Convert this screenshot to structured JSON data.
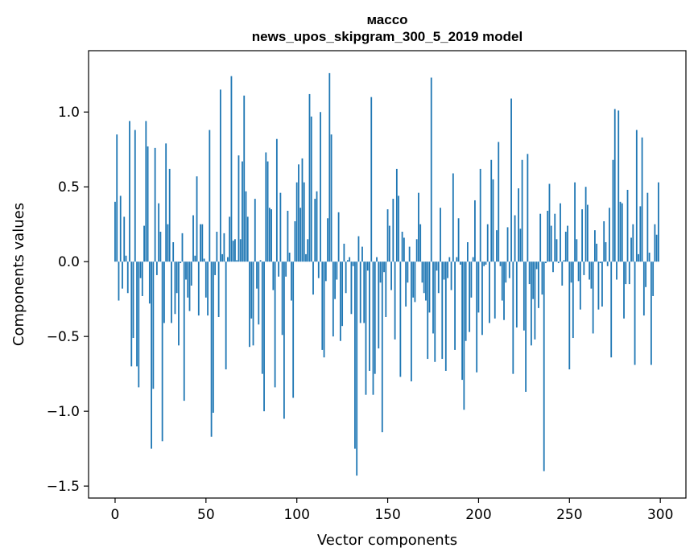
{
  "chart_data": {
    "type": "bar",
    "title": "массо",
    "subtitle": "news_upos_skipgram_300_5_2019 model",
    "xlabel": "Vector components",
    "ylabel": "Components values",
    "xlim": [
      -14.6,
      314.1
    ],
    "ylim": [
      -1.58,
      1.41
    ],
    "grid": false,
    "bar_color": "#1f77b4",
    "xticks": [
      0,
      50,
      100,
      150,
      200,
      250,
      300
    ],
    "xtick_labels": [
      "0",
      "50",
      "100",
      "150",
      "200",
      "250",
      "300"
    ],
    "yticks": [
      -1.5,
      -1.0,
      -0.5,
      0.0,
      0.5,
      1.0
    ],
    "ytick_labels": [
      "−1.5",
      "−1.0",
      "−0.5",
      "0.0",
      "0.5",
      "1.0"
    ],
    "values": [
      0.4,
      0.85,
      -0.26,
      0.44,
      -0.18,
      0.3,
      0.04,
      -0.21,
      0.94,
      -0.7,
      -0.51,
      0.88,
      -0.7,
      -0.84,
      -0.11,
      -0.23,
      0.24,
      0.94,
      0.77,
      -0.28,
      -1.25,
      -0.85,
      0.76,
      -0.09,
      0.39,
      0.2,
      -1.2,
      -0.41,
      0.79,
      0.25,
      0.62,
      -0.41,
      0.13,
      -0.35,
      -0.21,
      -0.56,
      -0.01,
      0.19,
      -0.93,
      -0.12,
      -0.24,
      -0.33,
      -0.16,
      0.31,
      0.04,
      0.57,
      -0.36,
      0.25,
      0.25,
      0.02,
      -0.24,
      -0.36,
      0.88,
      -1.17,
      -1.01,
      -0.09,
      0.2,
      -0.37,
      1.15,
      0.05,
      0.19,
      -0.72,
      0.03,
      0.3,
      1.24,
      0.14,
      0.15,
      0.01,
      0.71,
      0.15,
      0.67,
      1.11,
      0.47,
      0.3,
      -0.57,
      -0.38,
      -0.56,
      0.42,
      -0.18,
      -0.42,
      0.01,
      -0.75,
      -1.0,
      0.73,
      0.67,
      0.36,
      0.35,
      -0.19,
      -0.84,
      0.82,
      -0.1,
      0.46,
      -0.49,
      -1.05,
      -0.1,
      0.34,
      0.06,
      -0.26,
      -0.91,
      0.27,
      0.53,
      0.65,
      0.36,
      0.69,
      0.53,
      0.05,
      0.15,
      1.12,
      0.97,
      -0.22,
      0.42,
      0.47,
      -0.11,
      1.0,
      -0.59,
      -0.64,
      -0.13,
      0.29,
      1.26,
      0.85,
      -0.5,
      -0.25,
      -0.12,
      0.33,
      -0.53,
      -0.43,
      0.12,
      -0.21,
      0.01,
      0.03,
      -0.35,
      -0.03,
      -1.25,
      -1.43,
      0.17,
      -0.41,
      0.1,
      -0.41,
      -0.89,
      -0.06,
      -0.73,
      1.1,
      -0.89,
      -0.75,
      0.03,
      -0.58,
      -0.14,
      -1.14,
      -0.07,
      -0.37,
      0.35,
      0.24,
      -0.19,
      0.42,
      -0.52,
      0.62,
      0.44,
      -0.77,
      0.2,
      0.16,
      -0.3,
      -0.14,
      0.1,
      -0.8,
      -0.24,
      -0.27,
      0.15,
      0.46,
      0.25,
      -0.14,
      -0.21,
      -0.26,
      -0.65,
      -0.34,
      1.23,
      -0.48,
      -0.67,
      -0.06,
      -0.21,
      0.36,
      -0.65,
      -0.12,
      -0.73,
      -0.11,
      0.03,
      -0.19,
      0.59,
      -0.59,
      0.03,
      0.29,
      -0.02,
      -0.79,
      -0.99,
      -0.53,
      0.13,
      -0.47,
      -0.24,
      0.03,
      0.41,
      -0.74,
      -0.34,
      0.62,
      -0.49,
      -0.03,
      -0.02,
      0.25,
      -0.41,
      0.68,
      0.55,
      -0.38,
      0.21,
      0.8,
      -0.03,
      -0.26,
      -0.39,
      -0.14,
      0.23,
      -0.11,
      1.09,
      -0.75,
      0.31,
      -0.44,
      0.49,
      0.22,
      0.68,
      -0.46,
      -0.87,
      0.72,
      -0.15,
      -0.56,
      -0.25,
      -0.52,
      -0.05,
      -0.31,
      0.32,
      -0.22,
      -1.4,
      -0.01,
      0.34,
      0.52,
      0.24,
      -0.07,
      0.32,
      0.15,
      -0.01,
      0.39,
      -0.16,
      0.01,
      0.2,
      0.24,
      -0.72,
      -0.14,
      -0.51,
      0.53,
      0.15,
      -0.13,
      -0.32,
      0.35,
      -0.09,
      0.5,
      0.38,
      -0.12,
      -0.18,
      -0.48,
      0.21,
      0.12,
      -0.32,
      -0.01,
      -0.3,
      0.27,
      0.13,
      -0.03,
      0.36,
      -0.64,
      0.68,
      1.02,
      -0.12,
      1.01,
      0.4,
      0.39,
      -0.38,
      -0.15,
      0.48,
      -0.15,
      0.16,
      0.25,
      -0.69,
      0.88,
      0.05,
      0.37,
      0.83,
      -0.36,
      -0.17,
      0.46,
      0.06,
      -0.69,
      -0.23,
      0.25,
      0.18,
      0.53
    ]
  }
}
